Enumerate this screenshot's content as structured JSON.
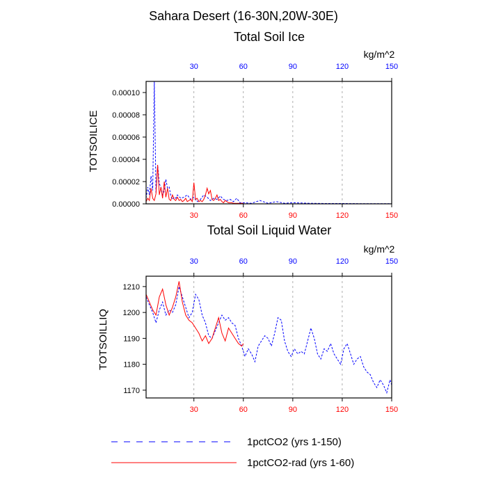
{
  "header": {
    "region_title": "Sahara Desert (16-30N,20W-30E)"
  },
  "colors": {
    "series_blue": "#0000ff",
    "series_red": "#ff0000",
    "grid": "#9a9a9a"
  },
  "legend": {
    "items": [
      {
        "label": "1pctCO2 (yrs 1-150)",
        "color": "#0000ff",
        "style": "dashed"
      },
      {
        "label": "1pctCO2-rad (yrs 1-60)",
        "color": "#ff0000",
        "style": "solid"
      }
    ]
  },
  "chart_data": [
    {
      "type": "line",
      "title": "Total Soil Ice",
      "ylabel": "TOTSOILICE",
      "units_label": "kg/m^2",
      "xlim": [
        1,
        150
      ],
      "ylim": [
        0,
        0.00011
      ],
      "y_ticks": [
        "0.00000",
        "0.00002",
        "0.00004",
        "0.00006",
        "0.00008",
        "0.00010"
      ],
      "y_tick_values": [
        0,
        2e-05,
        4e-05,
        6e-05,
        8e-05,
        0.0001
      ],
      "x_ticks_bottom": [
        "30",
        "60",
        "90",
        "120",
        "150"
      ],
      "x_ticks_top": [
        "30",
        "60",
        "90",
        "120",
        "150"
      ],
      "x_tick_values": [
        30,
        60,
        90,
        120,
        150
      ],
      "grid_x": true,
      "series": [
        {
          "name": "1pctCO2 (yrs 1-150)",
          "color": "#0000ff",
          "x": [
            1,
            2,
            3,
            4,
            5,
            6,
            7,
            8,
            9,
            10,
            11,
            12,
            13,
            14,
            15,
            16,
            17,
            18,
            19,
            20,
            22,
            24,
            26,
            28,
            30,
            32,
            34,
            36,
            38,
            40,
            42,
            44,
            46,
            48,
            50,
            52,
            54,
            56,
            58,
            60,
            65,
            70,
            75,
            80,
            85,
            90,
            100,
            110,
            120,
            130,
            140,
            150
          ],
          "values": [
            5e-06,
            1.5e-05,
            8e-06,
            2.5e-05,
            1.2e-05,
            0.00011,
            1e-05,
            3.5e-05,
            1.8e-05,
            1.5e-05,
            8e-06,
            1.2e-05,
            2.2e-05,
            1.4e-05,
            1.5e-05,
            7e-06,
            4e-06,
            6e-06,
            5e-06,
            8e-06,
            5e-06,
            6e-06,
            8e-06,
            4e-06,
            6e-06,
            2e-06,
            4e-06,
            8e-06,
            6e-06,
            3e-06,
            5e-06,
            4e-06,
            7e-06,
            4e-06,
            3e-06,
            4e-06,
            2e-06,
            5e-06,
            1e-06,
            1e-06,
            5e-07,
            3e-06,
            5e-07,
            2e-06,
            5e-07,
            1e-06,
            5e-07,
            3e-07,
            3e-07,
            2e-07,
            1e-07,
            1e-07
          ]
        },
        {
          "name": "1pctCO2-rad (yrs 1-60)",
          "color": "#ff0000",
          "x": [
            1,
            2,
            3,
            4,
            5,
            6,
            7,
            8,
            9,
            10,
            11,
            12,
            13,
            14,
            15,
            16,
            17,
            18,
            19,
            20,
            21,
            22,
            23,
            24,
            25,
            26,
            27,
            28,
            29,
            30,
            31,
            32,
            33,
            34,
            35,
            36,
            37,
            38,
            39,
            40,
            41,
            42,
            43,
            44,
            45,
            46,
            47,
            48,
            49,
            50,
            51,
            52,
            53,
            54,
            55,
            56,
            57,
            58,
            59,
            60
          ],
          "values": [
            2e-06,
            5e-06,
            3e-06,
            1.4e-05,
            5e-06,
            3e-06,
            9e-06,
            3.5e-05,
            8e-06,
            1.5e-05,
            5e-06,
            2e-05,
            6e-06,
            1.4e-05,
            4e-06,
            3e-06,
            8e-06,
            4e-06,
            3e-06,
            6e-06,
            3e-06,
            4e-06,
            2e-06,
            3e-06,
            5e-06,
            2e-06,
            3e-06,
            4e-06,
            2e-06,
            1.9e-05,
            4e-06,
            5e-06,
            2e-06,
            3e-06,
            2e-06,
            4e-06,
            8e-06,
            1.4e-05,
            9e-06,
            1.2e-05,
            4e-06,
            3e-06,
            5e-06,
            8e-06,
            3e-06,
            4e-06,
            2e-06,
            1e-06,
            3e-06,
            2e-06,
            1e-06,
            1e-06,
            1e-06,
            5e-07,
            5e-07,
            5e-07,
            5e-07,
            5e-07,
            5e-07,
            5e-07
          ]
        }
      ]
    },
    {
      "type": "line",
      "title": "Total Soil Liquid Water",
      "ylabel": "TOTSOILLIQ",
      "units_label": "kg/m^2",
      "xlim": [
        1,
        150
      ],
      "ylim": [
        1167,
        1214
      ],
      "y_ticks": [
        "1170",
        "1180",
        "1190",
        "1200",
        "1210"
      ],
      "y_tick_values": [
        1170,
        1180,
        1190,
        1200,
        1210
      ],
      "x_ticks_bottom": [
        "30",
        "60",
        "90",
        "120",
        "150"
      ],
      "x_ticks_top": [
        "30",
        "60",
        "90",
        "120",
        "150"
      ],
      "x_tick_values": [
        30,
        60,
        90,
        120,
        150
      ],
      "grid_x": true,
      "series": [
        {
          "name": "1pctCO2 (yrs 1-150)",
          "color": "#0000ff",
          "x": [
            1,
            3,
            5,
            7,
            9,
            11,
            13,
            15,
            17,
            19,
            21,
            23,
            25,
            27,
            29,
            31,
            33,
            35,
            37,
            39,
            41,
            43,
            45,
            47,
            49,
            51,
            53,
            55,
            57,
            59,
            61,
            63,
            65,
            67,
            69,
            71,
            73,
            75,
            77,
            79,
            81,
            83,
            85,
            87,
            89,
            91,
            93,
            95,
            97,
            99,
            101,
            103,
            105,
            107,
            109,
            111,
            113,
            115,
            117,
            119,
            121,
            123,
            125,
            127,
            129,
            131,
            133,
            135,
            137,
            139,
            141,
            143,
            145,
            147,
            149,
            150
          ],
          "values": [
            1206,
            1203,
            1200,
            1196,
            1201,
            1204,
            1199,
            1201,
            1200,
            1203,
            1210,
            1206,
            1202,
            1198,
            1200,
            1207,
            1205,
            1199,
            1196,
            1191,
            1190,
            1193,
            1196,
            1199,
            1197,
            1198,
            1196,
            1195,
            1190,
            1187,
            1183,
            1186,
            1184,
            1181,
            1187,
            1189,
            1191,
            1190,
            1187,
            1192,
            1198,
            1197,
            1189,
            1185,
            1183,
            1186,
            1184,
            1185,
            1184,
            1189,
            1194,
            1190,
            1184,
            1182,
            1186,
            1185,
            1188,
            1184,
            1182,
            1180,
            1186,
            1188,
            1184,
            1180,
            1182,
            1183,
            1179,
            1177,
            1176,
            1173,
            1171,
            1174,
            1172,
            1169,
            1174,
            1172
          ]
        },
        {
          "name": "1pctCO2-rad (yrs 1-60)",
          "color": "#ff0000",
          "x": [
            1,
            3,
            5,
            7,
            9,
            11,
            13,
            15,
            17,
            19,
            21,
            23,
            25,
            27,
            29,
            31,
            33,
            35,
            37,
            39,
            41,
            43,
            45,
            47,
            49,
            51,
            53,
            55,
            57,
            59,
            60
          ],
          "values": [
            1207,
            1204,
            1201,
            1199,
            1206,
            1209,
            1203,
            1199,
            1202,
            1206,
            1212,
            1204,
            1199,
            1197,
            1196,
            1194,
            1192,
            1189,
            1191,
            1188,
            1190,
            1194,
            1198,
            1192,
            1189,
            1194,
            1192,
            1190,
            1188,
            1187,
            1188
          ]
        }
      ]
    }
  ]
}
